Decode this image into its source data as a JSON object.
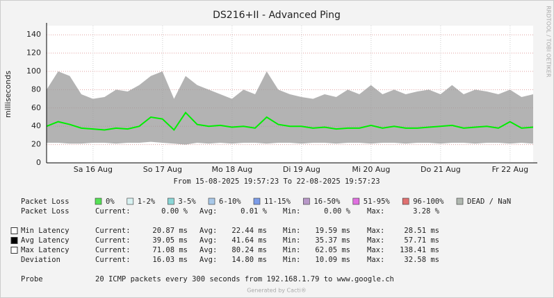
{
  "chart_data": {
    "type": "line",
    "title": "DS216+II - Advanced Ping",
    "ylabel": "milliseconds",
    "range_label": "From 15-08-2025 19:57:23 To 22-08-2025 19:57:23",
    "x": [
      0,
      4,
      8,
      12,
      16,
      20,
      24,
      28,
      32,
      36,
      40,
      44,
      48,
      52,
      56,
      60,
      64,
      68,
      72,
      76,
      80,
      84,
      88,
      92,
      96,
      100,
      104,
      108,
      112,
      116,
      120,
      124,
      128,
      132,
      136,
      140,
      144,
      148,
      152,
      156,
      160,
      164,
      168
    ],
    "xlim": [
      0,
      168
    ],
    "xticks": [
      {
        "value": 16.05,
        "label": "Sa 16 Aug"
      },
      {
        "value": 40.05,
        "label": "So 17 Aug"
      },
      {
        "value": 64.05,
        "label": "Mo 18 Aug"
      },
      {
        "value": 88.05,
        "label": "Di 19 Aug"
      },
      {
        "value": 112.05,
        "label": "Mi 20 Aug"
      },
      {
        "value": 136.05,
        "label": "Do 21 Aug"
      },
      {
        "value": 160.05,
        "label": "Fr 22 Aug"
      }
    ],
    "ylim": [
      0,
      150
    ],
    "yticks": [
      0,
      20,
      40,
      60,
      80,
      100,
      120,
      140
    ],
    "grid": true,
    "series": [
      {
        "name": "Min Latency",
        "color": "#ffffff",
        "values": [
          22,
          22,
          21,
          21,
          22,
          22,
          21,
          22,
          22,
          23,
          22,
          21,
          20,
          22,
          21,
          22,
          21,
          22,
          22,
          21,
          22,
          22,
          21,
          22,
          22,
          21,
          22,
          22,
          21,
          22,
          22,
          21,
          22,
          22,
          21,
          22,
          22,
          21,
          22,
          22,
          21,
          22,
          21
        ]
      },
      {
        "name": "Avg Latency",
        "color": "#000000",
        "values": [
          40,
          45,
          42,
          38,
          37,
          36,
          38,
          37,
          40,
          50,
          48,
          36,
          55,
          42,
          40,
          41,
          39,
          40,
          38,
          50,
          42,
          40,
          40,
          38,
          39,
          37,
          38,
          38,
          41,
          38,
          40,
          38,
          38,
          39,
          40,
          41,
          38,
          39,
          40,
          38,
          45,
          38,
          39
        ]
      },
      {
        "name": "Max Latency",
        "color": "#ffffff",
        "values": [
          80,
          100,
          95,
          75,
          70,
          72,
          80,
          78,
          85,
          95,
          100,
          70,
          95,
          85,
          80,
          75,
          70,
          80,
          75,
          100,
          80,
          75,
          72,
          70,
          75,
          72,
          80,
          75,
          85,
          75,
          80,
          75,
          78,
          80,
          75,
          85,
          75,
          80,
          78,
          75,
          80,
          72,
          75
        ]
      }
    ],
    "line_color": "#00ee00"
  },
  "loss_legend": {
    "label": "Packet Loss",
    "items": [
      {
        "label": "0%",
        "color": "#55e055"
      },
      {
        "label": "1-2%",
        "color": "#d8f2f2"
      },
      {
        "label": "3-5%",
        "color": "#8ad6d6"
      },
      {
        "label": "6-10%",
        "color": "#a8c8e8"
      },
      {
        "label": "11-15%",
        "color": "#7c9ce8"
      },
      {
        "label": "16-50%",
        "color": "#b898c8"
      },
      {
        "label": "51-95%",
        "color": "#e070e0"
      },
      {
        "label": "96-100%",
        "color": "#e07070"
      },
      {
        "label": "DEAD / NaN",
        "color": "#b0b8b0"
      }
    ]
  },
  "loss_stats": {
    "label": "Packet Loss",
    "cells": [
      "Current:",
      "0.00 %",
      "Avg:",
      "0.01 %",
      "Min:",
      "0.00 %",
      "Max:",
      "3.28 %"
    ]
  },
  "latency_stats": [
    [
      "Current:",
      "20.87 ms",
      "Avg:",
      "22.44 ms",
      "Min:",
      "19.59 ms",
      "Max:",
      "28.51 ms"
    ],
    [
      "Current:",
      "39.05 ms",
      "Avg:",
      "41.64 ms",
      "Min:",
      "35.37 ms",
      "Max:",
      "57.71 ms"
    ],
    [
      "Current:",
      "71.08 ms",
      "Avg:",
      "80.24 ms",
      "Min:",
      "62.05 ms",
      "Max:",
      "138.41 ms"
    ]
  ],
  "deviation": {
    "label": "Deviation",
    "cells": [
      "Current:",
      "16.03 ms",
      "Avg:",
      "14.80 ms",
      "Min:",
      "10.09 ms",
      "Max:",
      "32.58 ms"
    ]
  },
  "probe": {
    "label": "Probe",
    "text": "20 ICMP packets every 300 seconds from 192.168.1.79 to www.google.ch"
  },
  "side_text": "RRDTOOL / TOBI OETIKER",
  "footer": "Generated by Cacti®"
}
